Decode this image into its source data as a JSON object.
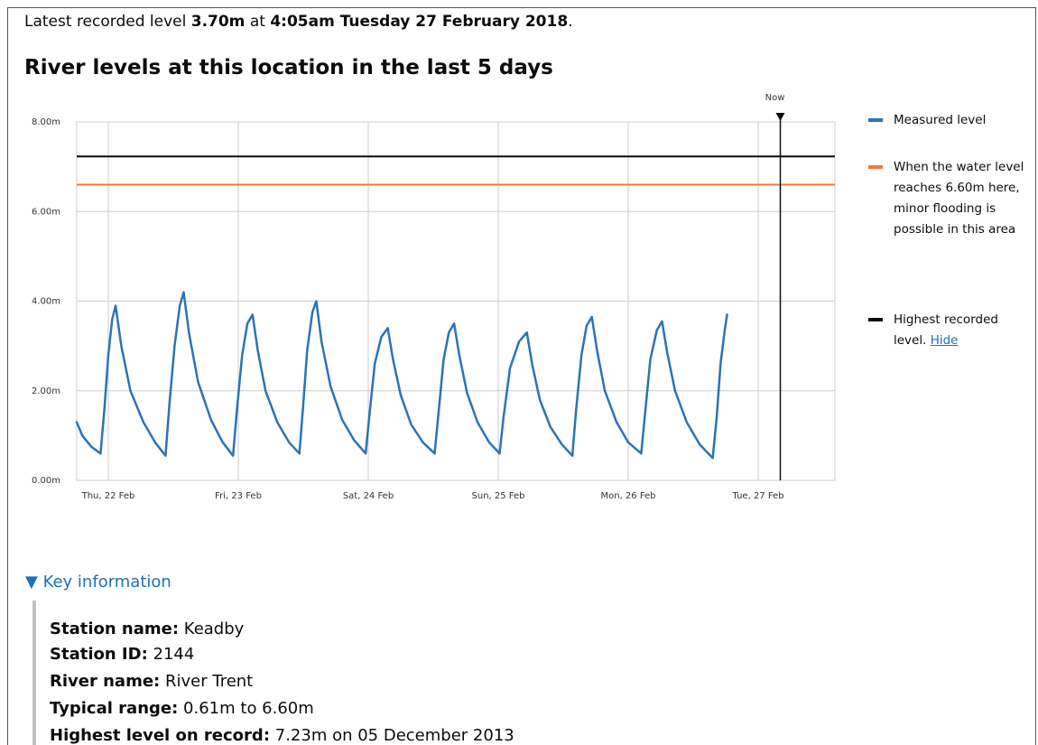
{
  "latest": {
    "prefix": "Latest recorded level",
    "level": "3.70m",
    "at": "at",
    "time": "4:05am Tuesday 27 February 2018",
    "suffix": "."
  },
  "chart_data": {
    "type": "line",
    "title": "River levels at this location in the last 5 days",
    "xlim": [
      -0.243,
      5.59
    ],
    "xticks": [
      {
        "value": 0,
        "label": "Thu, 22 Feb"
      },
      {
        "value": 1,
        "label": "Fri, 23 Feb"
      },
      {
        "value": 2,
        "label": "Sat, 24 Feb"
      },
      {
        "value": 3,
        "label": "Sun, 25 Feb"
      },
      {
        "value": 4,
        "label": "Mon, 26 Feb"
      },
      {
        "value": 5,
        "label": "Tue, 27 Feb"
      }
    ],
    "ylim": [
      0,
      8
    ],
    "yticks": [
      {
        "value": 8,
        "label": "8.00m"
      },
      {
        "value": 6,
        "label": "6.00m"
      },
      {
        "value": 4,
        "label": "4.00m"
      },
      {
        "value": 2,
        "label": "2.00m"
      },
      {
        "value": 0,
        "label": "0.00m"
      }
    ],
    "grid": true,
    "series": [
      {
        "name": "Measured level",
        "color": "#2b73b6",
        "x": [
          -0.243,
          -0.2,
          -0.13,
          -0.06,
          -0.03,
          0.0,
          0.03,
          0.056,
          0.1,
          0.17,
          0.27,
          0.36,
          0.44,
          0.47,
          0.51,
          0.55,
          0.58,
          0.62,
          0.69,
          0.79,
          0.88,
          0.96,
          0.99,
          1.03,
          1.07,
          1.11,
          1.15,
          1.21,
          1.3,
          1.39,
          1.47,
          1.5,
          1.53,
          1.57,
          1.6,
          1.64,
          1.71,
          1.8,
          1.89,
          1.98,
          2.01,
          2.05,
          2.1,
          2.15,
          2.19,
          2.25,
          2.33,
          2.42,
          2.51,
          2.54,
          2.58,
          2.62,
          2.66,
          2.7,
          2.76,
          2.84,
          2.93,
          3.01,
          3.04,
          3.09,
          3.16,
          3.22,
          3.26,
          3.32,
          3.4,
          3.49,
          3.57,
          3.6,
          3.64,
          3.68,
          3.72,
          3.76,
          3.82,
          3.91,
          4.0,
          4.1,
          4.13,
          4.17,
          4.22,
          4.26,
          4.3,
          4.36,
          4.45,
          4.55,
          4.65,
          4.68,
          4.71,
          4.74,
          4.76
        ],
        "values": [
          1.3,
          1.0,
          0.75,
          0.6,
          1.6,
          2.8,
          3.6,
          3.9,
          3.0,
          2.0,
          1.3,
          0.85,
          0.55,
          1.7,
          3.0,
          3.9,
          4.2,
          3.3,
          2.2,
          1.35,
          0.85,
          0.55,
          1.6,
          2.8,
          3.5,
          3.7,
          2.9,
          2.0,
          1.3,
          0.85,
          0.6,
          1.7,
          2.9,
          3.75,
          4.0,
          3.1,
          2.1,
          1.35,
          0.9,
          0.6,
          1.5,
          2.6,
          3.2,
          3.4,
          2.7,
          1.9,
          1.25,
          0.85,
          0.6,
          1.5,
          2.7,
          3.3,
          3.5,
          2.8,
          1.95,
          1.3,
          0.85,
          0.6,
          1.4,
          2.5,
          3.1,
          3.3,
          2.6,
          1.8,
          1.2,
          0.8,
          0.55,
          1.6,
          2.8,
          3.45,
          3.65,
          2.9,
          2.0,
          1.3,
          0.85,
          0.6,
          1.5,
          2.7,
          3.35,
          3.55,
          2.85,
          2.0,
          1.3,
          0.8,
          0.5,
          1.4,
          2.6,
          3.3,
          3.7
        ]
      }
    ],
    "thresholds": [
      {
        "name": "When the water level reaches 6.60m here, minor flooding is possible in this area",
        "value": 6.6,
        "color": "#f47738"
      },
      {
        "name": "Highest recorded level.",
        "value": 7.23,
        "color": "#0b0c0c",
        "link": "Hide"
      }
    ],
    "now": {
      "label": "Now",
      "x": 5.17
    }
  },
  "key_information": {
    "toggle": "Key information",
    "items": [
      {
        "label": "Station name:",
        "value": "Keadby"
      },
      {
        "label": "Station ID:",
        "value": "2144"
      },
      {
        "label": "River name:",
        "value": "River Trent"
      },
      {
        "label": "Typical range:",
        "value": "0.61m to 6.60m"
      },
      {
        "label": "Highest level on record:",
        "value": "7.23m on 05 December 2013"
      }
    ]
  }
}
